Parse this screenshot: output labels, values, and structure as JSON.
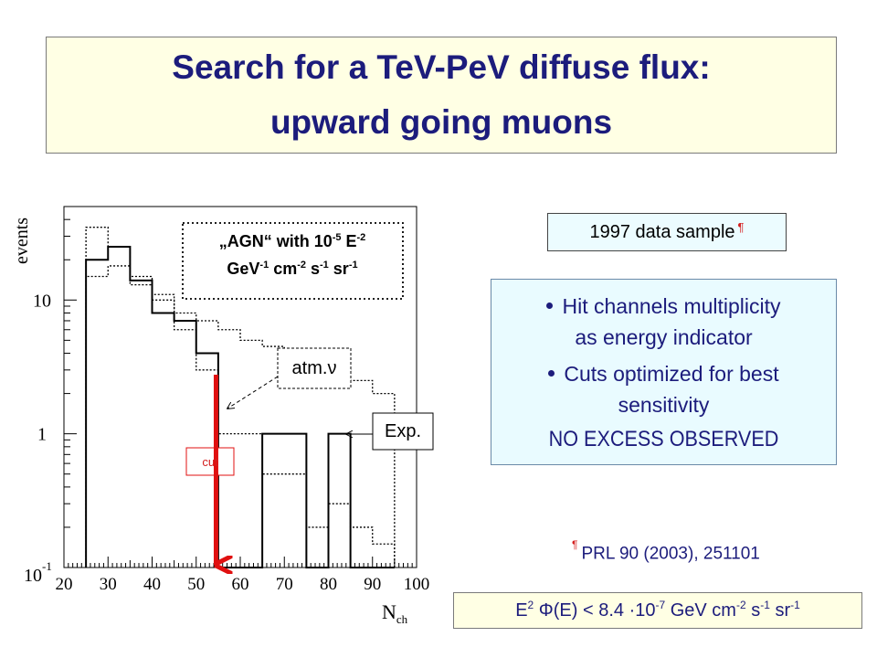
{
  "slide": {
    "title_line1": "Search for a TeV-PeV diffuse flux:",
    "title_line2": "upward going muons"
  },
  "sample_box": {
    "text": "1997 data sample",
    "mark": "¶"
  },
  "info_box": {
    "bullet1_line1": "Hit channels multiplicity",
    "bullet1_line2": "as energy indicator",
    "bullet2_line1": "Cuts optimized for best",
    "bullet2_line2": "sensitivity",
    "conclusion": "NO EXCESS OBSERVED"
  },
  "reference": {
    "mark": "¶",
    "text": "PRL  90 (2003), 251101"
  },
  "limit": {
    "e": "E",
    "e_exp": "2",
    "phi": "Φ(E) < 8.4",
    "times": "·10",
    "exp1": "-7",
    "unit_gev_cm": "GeV cm",
    "exp2": "-2",
    "unit_s": "s",
    "exp3": "-1",
    "unit_sr": "sr",
    "exp4": "-1"
  },
  "annotations": {
    "agn_line1_a": "„AGN“  with 10",
    "agn_exp1": "-5",
    "agn_line1_b": " E",
    "agn_exp2": "-2",
    "agn_line2_a": "GeV",
    "agn_exp3": "-1",
    "agn_line2_b": " cm",
    "agn_exp4": "-2",
    "agn_line2_c": " s",
    "agn_exp5": "-1",
    "agn_line2_d": " sr",
    "agn_exp6": "-1",
    "atm": "atm.ν",
    "exp": "Exp.",
    "cut": "cut"
  },
  "colors": {
    "title": "#1c1c7c",
    "cut": "#e01010",
    "title_bg": "#ffffe4",
    "info_bg": "#e9fbff"
  },
  "chart_data": {
    "type": "histogram",
    "xlabel": "N",
    "xlabel_sub": "ch",
    "ylabel": "events",
    "y_scale": "log",
    "xlim": [
      20,
      100
    ],
    "ylim": [
      0.1,
      50
    ],
    "x_ticks": [
      "20",
      "30",
      "40",
      "50",
      "60",
      "70",
      "80",
      "90",
      "100"
    ],
    "y_ticks": [
      {
        "value": 0.1,
        "label": "10",
        "exp": "-1"
      },
      {
        "value": 1,
        "label": "1",
        "exp": ""
      },
      {
        "value": 10,
        "label": "10",
        "exp": ""
      }
    ],
    "bin_edges": [
      25,
      30,
      35,
      40,
      45,
      50,
      55,
      60,
      65,
      70,
      75,
      80,
      85,
      90,
      95
    ],
    "series": [
      {
        "name": "Exp.",
        "style": "solid",
        "values": [
          20,
          25,
          14,
          8,
          7,
          4,
          0.1,
          0.1,
          1,
          1,
          0.1,
          1,
          0.1,
          0.1
        ]
      },
      {
        "name": "atm.ν",
        "style": "dotted",
        "values": [
          35,
          25,
          15,
          10,
          6,
          3,
          1,
          1,
          0.5,
          0.5,
          0.2,
          0.3,
          0.2,
          0.15
        ]
      },
      {
        "name": "AGN",
        "style": "dotted",
        "values": [
          15,
          18,
          13,
          11,
          8,
          7,
          6,
          5,
          4.5,
          4,
          3.5,
          3,
          2.5,
          2
        ]
      }
    ],
    "cut_x": 55
  }
}
